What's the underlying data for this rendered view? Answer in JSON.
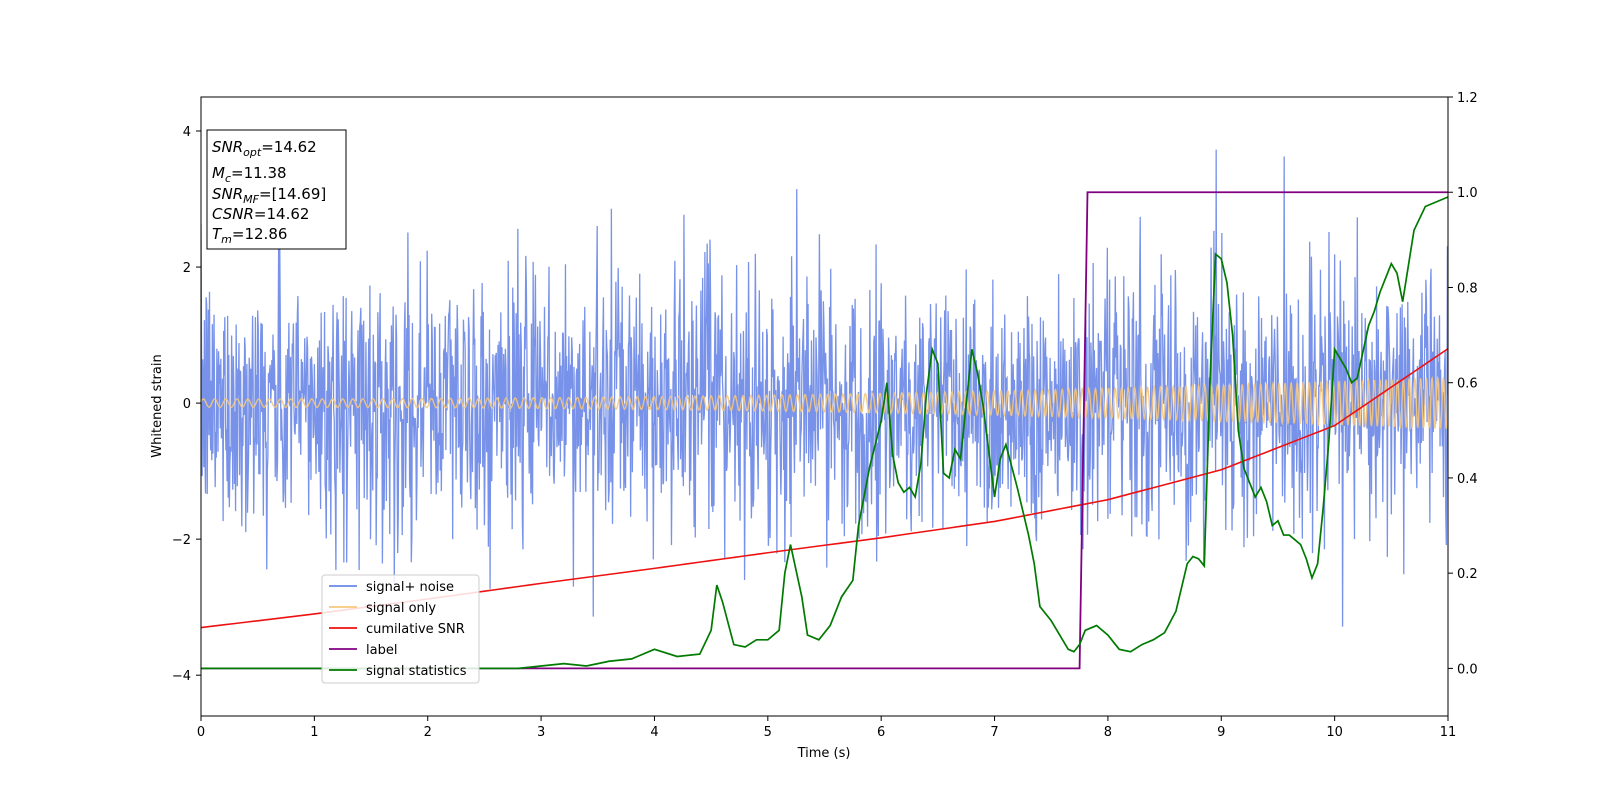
{
  "chart_data": {
    "type": "line",
    "xlabel": "Time (s)",
    "ylabel_left": "Whitened strain",
    "ylabel_right": "",
    "xlim": [
      0,
      11
    ],
    "ylim_left": [
      -4.6,
      4.5
    ],
    "ylim_right": [
      -0.1,
      1.2
    ],
    "x_ticks": [
      0,
      1,
      2,
      3,
      4,
      5,
      6,
      7,
      8,
      9,
      10,
      11
    ],
    "y_ticks_left": [
      -4,
      -2,
      0,
      2,
      4
    ],
    "y_ticks_right": [
      0.0,
      0.2,
      0.4,
      0.6,
      0.8,
      1.0,
      1.2
    ],
    "grid": false,
    "legend_position": "lower-left",
    "colors": {
      "signal_noise": "#6b89e6",
      "signal_only": "#f5c77e",
      "cumulative_snr": "#ee1111",
      "label": "#800080",
      "signal_statistics": "#007a00"
    },
    "info_box": {
      "snr_opt": {
        "main": "SNR",
        "sub": "opt",
        "value": "=14.62"
      },
      "mc": {
        "main": "M",
        "sub": "c",
        "value": "=11.38"
      },
      "snr_mf": {
        "main": "SNR",
        "sub": "MF",
        "value": "=[14.69]"
      },
      "csnr": {
        "main": "CSNR",
        "value": "=14.62"
      },
      "tm": {
        "main": "T",
        "sub": "m",
        "value": "=12.86"
      }
    },
    "series": [
      {
        "name": "signal+ noise",
        "axis": "left",
        "description_kind": "noise",
        "sample_rate_points": 2200,
        "std": 1.0
      },
      {
        "name": "signal only",
        "axis": "left",
        "chirp": {
          "amp_start": 0.06,
          "amp_end": 0.38,
          "cycles_per_sec_start": 10,
          "cycles_per_sec_end": 20
        }
      },
      {
        "name": "cumilative SNR",
        "axis": "left",
        "x": [
          0,
          1,
          2,
          3,
          4,
          5,
          6,
          7,
          8,
          9,
          10,
          11
        ],
        "values": [
          -3.3,
          -3.1,
          -2.88,
          -2.65,
          -2.43,
          -2.2,
          -1.98,
          -1.74,
          -1.42,
          -0.98,
          -0.33,
          0.8
        ]
      },
      {
        "name": "label",
        "axis": "right",
        "x": [
          0,
          7.75,
          7.82,
          11
        ],
        "values": [
          0.0,
          0.0,
          1.0,
          1.0
        ]
      },
      {
        "name": "signal statistics",
        "axis": "right",
        "x": [
          0,
          0.5,
          1,
          1.5,
          2,
          2.5,
          2.8,
          3.0,
          3.2,
          3.4,
          3.6,
          3.8,
          4.0,
          4.2,
          4.4,
          4.5,
          4.55,
          4.6,
          4.7,
          4.8,
          4.9,
          5.0,
          5.1,
          5.15,
          5.2,
          5.3,
          5.35,
          5.45,
          5.55,
          5.65,
          5.75,
          5.8,
          5.9,
          6.0,
          6.05,
          6.1,
          6.15,
          6.2,
          6.25,
          6.3,
          6.35,
          6.4,
          6.45,
          6.5,
          6.55,
          6.6,
          6.65,
          6.7,
          6.8,
          6.85,
          6.9,
          7.0,
          7.05,
          7.1,
          7.2,
          7.3,
          7.35,
          7.4,
          7.5,
          7.6,
          7.65,
          7.7,
          7.75,
          7.8,
          7.9,
          8.0,
          8.1,
          8.2,
          8.3,
          8.4,
          8.5,
          8.6,
          8.7,
          8.75,
          8.8,
          8.85,
          8.9,
          8.95,
          9.0,
          9.05,
          9.1,
          9.15,
          9.2,
          9.25,
          9.3,
          9.35,
          9.4,
          9.45,
          9.5,
          9.55,
          9.6,
          9.65,
          9.7,
          9.75,
          9.8,
          9.85,
          9.9,
          9.95,
          10.0,
          10.1,
          10.15,
          10.2,
          10.3,
          10.35,
          10.4,
          10.45,
          10.5,
          10.55,
          10.6,
          10.7,
          10.8,
          10.9,
          11.0
        ],
        "values": [
          0.0,
          0.0,
          0.0,
          0.0,
          0.0,
          0.0,
          0.0,
          0.005,
          0.01,
          0.005,
          0.015,
          0.02,
          0.04,
          0.025,
          0.03,
          0.08,
          0.175,
          0.14,
          0.05,
          0.045,
          0.06,
          0.06,
          0.08,
          0.2,
          0.26,
          0.15,
          0.07,
          0.06,
          0.09,
          0.15,
          0.185,
          0.3,
          0.425,
          0.52,
          0.6,
          0.45,
          0.39,
          0.37,
          0.38,
          0.36,
          0.43,
          0.58,
          0.67,
          0.64,
          0.41,
          0.4,
          0.46,
          0.44,
          0.67,
          0.62,
          0.55,
          0.36,
          0.44,
          0.47,
          0.38,
          0.28,
          0.22,
          0.13,
          0.1,
          0.06,
          0.04,
          0.035,
          0.05,
          0.08,
          0.09,
          0.07,
          0.04,
          0.035,
          0.05,
          0.06,
          0.075,
          0.12,
          0.22,
          0.235,
          0.23,
          0.215,
          0.6,
          0.87,
          0.86,
          0.81,
          0.7,
          0.5,
          0.42,
          0.39,
          0.36,
          0.38,
          0.35,
          0.3,
          0.31,
          0.28,
          0.28,
          0.27,
          0.26,
          0.23,
          0.19,
          0.22,
          0.34,
          0.48,
          0.67,
          0.63,
          0.6,
          0.61,
          0.72,
          0.75,
          0.79,
          0.82,
          0.85,
          0.83,
          0.77,
          0.92,
          0.97,
          0.98,
          0.99
        ]
      }
    ]
  }
}
